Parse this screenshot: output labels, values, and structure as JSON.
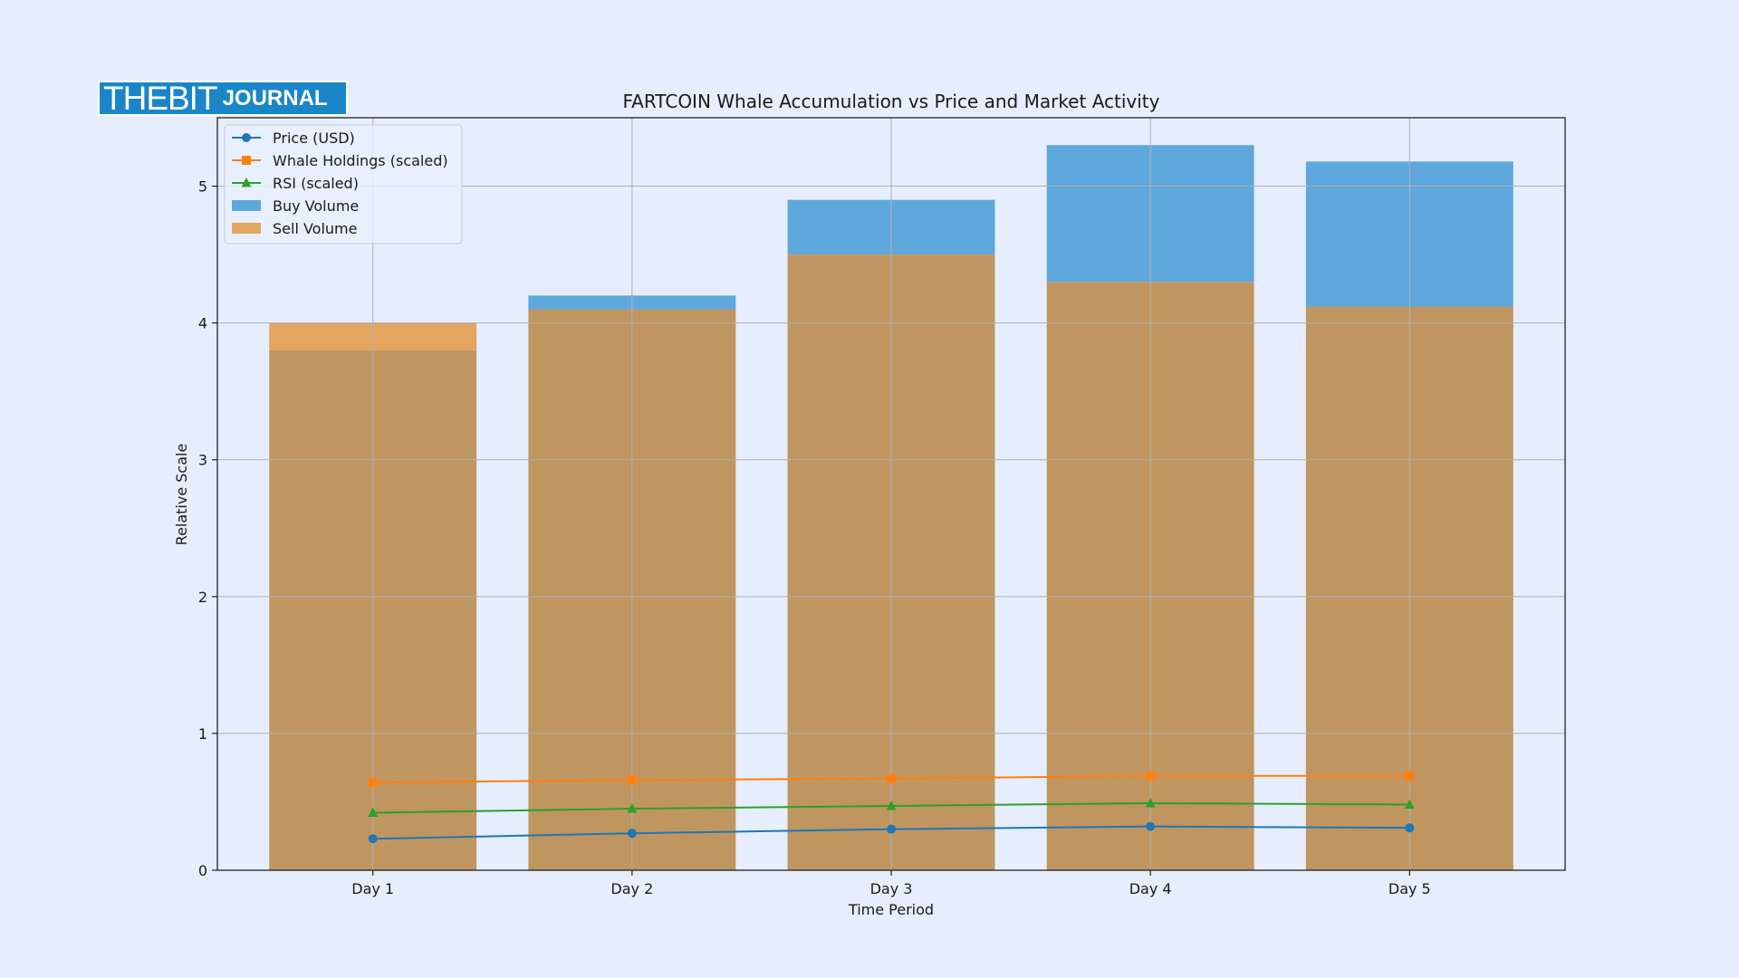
{
  "logo": {
    "brand": "THEBIT",
    "sub": "JOURNAL"
  },
  "colors": {
    "background": "#e6eefd",
    "price": "#1f77b4",
    "whale": "#ff7f0e",
    "rsi": "#2ca02c",
    "buy": "#5ea8de",
    "sell": "#e2a660",
    "overlap": "#c09660",
    "grid": "#b0b0b0"
  },
  "chart_data": {
    "type": "bar",
    "title": "FARTCOIN Whale Accumulation vs Price and Market Activity",
    "xlabel": "Time Period",
    "ylabel": "Relative Scale",
    "categories": [
      "Day 1",
      "Day 2",
      "Day 3",
      "Day 4",
      "Day 5"
    ],
    "ylim": [
      0,
      5.5
    ],
    "yticks": [
      0,
      1,
      2,
      3,
      4,
      5
    ],
    "grid": true,
    "legend_position": "top-left",
    "bar_series": [
      {
        "name": "Buy Volume",
        "values": [
          3.8,
          4.2,
          4.9,
          5.3,
          5.18
        ]
      },
      {
        "name": "Sell Volume",
        "values": [
          4.0,
          4.1,
          4.5,
          4.3,
          4.12
        ]
      }
    ],
    "line_series": [
      {
        "name": "Price (USD)",
        "marker": "circle",
        "values": [
          0.23,
          0.27,
          0.3,
          0.32,
          0.31
        ]
      },
      {
        "name": "Whale Holdings (scaled)",
        "marker": "square",
        "values": [
          0.64,
          0.66,
          0.67,
          0.69,
          0.69
        ]
      },
      {
        "name": "RSI (scaled)",
        "marker": "triangle",
        "values": [
          0.42,
          0.45,
          0.47,
          0.49,
          0.48
        ]
      }
    ]
  }
}
